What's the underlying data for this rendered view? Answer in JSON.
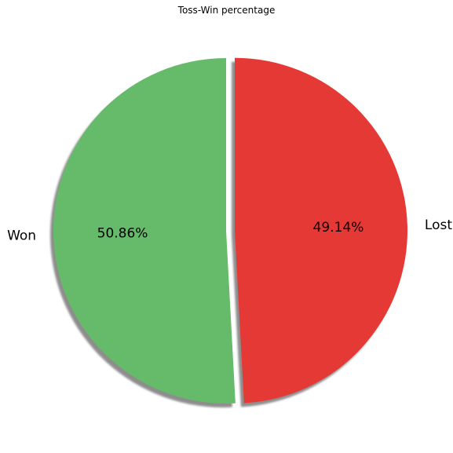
{
  "chart_data": {
    "type": "pie",
    "title": "Toss-Win percentage",
    "labels": [
      "Won",
      "Lost"
    ],
    "values": [
      50.86,
      49.14
    ],
    "percent_labels": [
      "50.86%",
      "49.14%"
    ],
    "colors": [
      "#66bb6a",
      "#e53935"
    ],
    "explode": [
      0,
      0.05
    ],
    "shadow": true,
    "start_angle_deg": 90,
    "direction": "counterclockwise"
  }
}
